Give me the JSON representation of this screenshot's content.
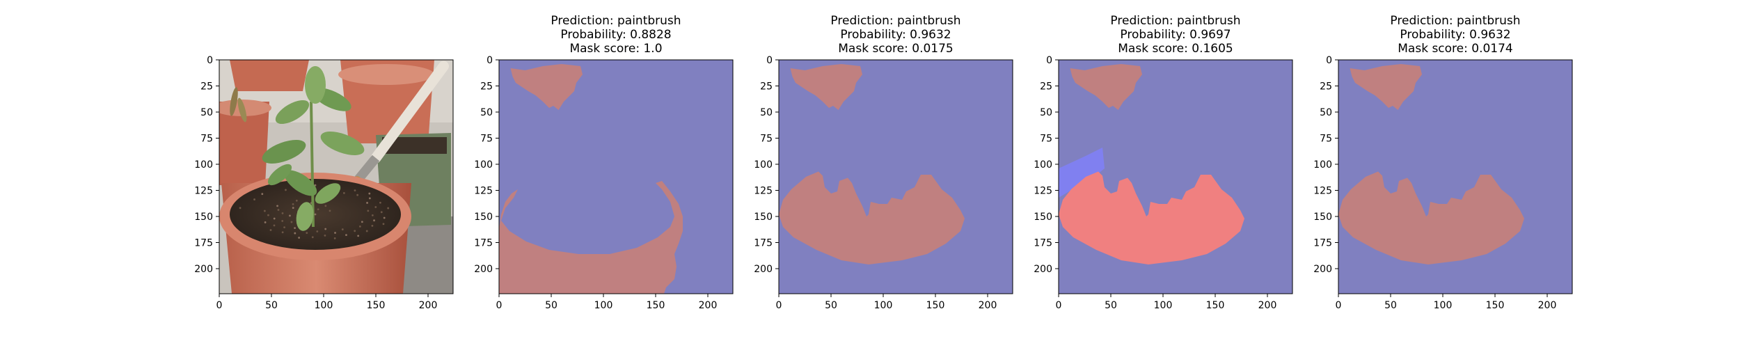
{
  "chart_data": [
    {
      "type": "image",
      "panel": "source-photo",
      "title_lines": [],
      "x_ticks": [
        0,
        50,
        100,
        150,
        200
      ],
      "y_ticks": [
        0,
        25,
        50,
        75,
        100,
        125,
        150,
        175,
        200
      ],
      "xlim": [
        0,
        224
      ],
      "ylim": [
        224,
        0
      ]
    },
    {
      "type": "heatmap",
      "panel": "mask-1",
      "title_lines": [
        "Prediction: paintbrush",
        "Probability: 0.8828",
        "Mask score: 1.0"
      ],
      "prediction": "paintbrush",
      "probability": 0.8828,
      "mask_score": 1.0,
      "x_ticks": [
        0,
        50,
        100,
        150,
        200
      ],
      "y_ticks": [
        0,
        25,
        50,
        75,
        100,
        125,
        150,
        175,
        200
      ],
      "xlim": [
        0,
        224
      ],
      "ylim": [
        224,
        0
      ],
      "colors": {
        "background": "#8080c0",
        "mask": "#c08080"
      }
    },
    {
      "type": "heatmap",
      "panel": "mask-2",
      "title_lines": [
        "Prediction: paintbrush",
        "Probability: 0.9632",
        "Mask score: 0.0175"
      ],
      "prediction": "paintbrush",
      "probability": 0.9632,
      "mask_score": 0.0175,
      "x_ticks": [
        0,
        50,
        100,
        150,
        200
      ],
      "y_ticks": [
        0,
        25,
        50,
        75,
        100,
        125,
        150,
        175,
        200
      ],
      "xlim": [
        0,
        224
      ],
      "ylim": [
        224,
        0
      ],
      "colors": {
        "background": "#8080c0",
        "mask": "#c08080"
      }
    },
    {
      "type": "heatmap",
      "panel": "mask-3",
      "title_lines": [
        "Prediction: paintbrush",
        "Probability: 0.9697",
        "Mask score: 0.1605"
      ],
      "prediction": "paintbrush",
      "probability": 0.9697,
      "mask_score": 0.1605,
      "x_ticks": [
        0,
        50,
        100,
        150,
        200
      ],
      "y_ticks": [
        0,
        25,
        50,
        75,
        100,
        125,
        150,
        175,
        200
      ],
      "xlim": [
        0,
        224
      ],
      "ylim": [
        224,
        0
      ],
      "colors": {
        "background": "#8080c0",
        "mask": "#c08080",
        "mask_strong": "#f08080",
        "region_blue": "#8080f0"
      }
    },
    {
      "type": "heatmap",
      "panel": "mask-4",
      "title_lines": [
        "Prediction: paintbrush",
        "Probability: 0.9632",
        "Mask score: 0.0174"
      ],
      "prediction": "paintbrush",
      "probability": 0.9632,
      "mask_score": 0.0174,
      "x_ticks": [
        0,
        50,
        100,
        150,
        200
      ],
      "y_ticks": [
        0,
        25,
        50,
        75,
        100,
        125,
        150,
        175,
        200
      ],
      "xlim": [
        0,
        224
      ],
      "ylim": [
        224,
        0
      ],
      "colors": {
        "background": "#8080c0",
        "mask": "#c08080"
      }
    }
  ]
}
